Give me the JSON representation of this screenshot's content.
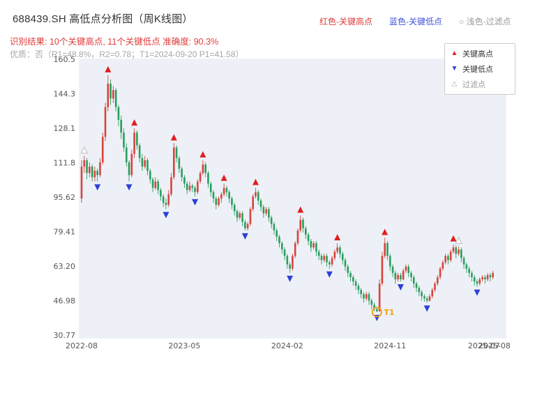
{
  "header": {
    "title": "688439.SH 高低点分析图（周K线图）",
    "top_legend": [
      {
        "label": "红色-关键高点",
        "color": "#e03c3c"
      },
      {
        "label": "蓝色-关键低点",
        "color": "#4055d8"
      },
      {
        "label": "○ 浅色-过滤点",
        "color": "#999999"
      }
    ],
    "result_line": "识别结果: 10个关键高点, 11个关键低点  准确度: 90.3%",
    "result_color": "#e03c3c",
    "quality_line": "优质：否（R1=48.8%，R2=0.78；T1=2024-09-20 P1=41.58）",
    "quality_color": "#a6a6a6"
  },
  "plot_legend": {
    "items": [
      {
        "symbol": "▲",
        "color": "#e01f1f",
        "label": "关键高点",
        "label_color": "#333333"
      },
      {
        "symbol": "▼",
        "color": "#2b3fd6",
        "label": "关键低点",
        "label_color": "#333333"
      },
      {
        "symbol": "△",
        "color": "#aaaaaa",
        "label": "过滤点",
        "label_color": "#999999"
      }
    ]
  },
  "chart_data": {
    "type": "candlestick",
    "title": "688439.SH 高低点分析图（周K线图）",
    "subtitle": "识别结果: 10个关键高点, 11个关键低点  准确度: 90.3%",
    "frequency": "weekly",
    "ylim": [
      30.77,
      160.5
    ],
    "y_tick_values": [
      160.5,
      144.3,
      128.1,
      111.8,
      95.62,
      79.41,
      63.2,
      46.98,
      30.77
    ],
    "y_tick_labels": [
      "160.5",
      "144.3",
      "128.1",
      "111.8",
      "95.62",
      "79.41",
      "63.20",
      "46.98",
      "30.77"
    ],
    "x_ticks": [
      {
        "label": "2022-08",
        "week": 0
      },
      {
        "label": "2023-05",
        "week": 39
      },
      {
        "label": "2024-02",
        "week": 78
      },
      {
        "label": "2024-11",
        "week": 117
      },
      {
        "label": "2025-07",
        "week": 152.6
      },
      {
        "label": "2025-08",
        "week": 156.6
      }
    ],
    "ohlc_format": "[open, high, low, close]",
    "candles": [
      [
        95,
        113,
        93,
        110
      ],
      [
        110,
        115,
        107,
        113
      ],
      [
        113,
        114,
        104,
        107
      ],
      [
        107,
        112,
        105,
        110
      ],
      [
        110,
        111,
        103,
        105
      ],
      [
        105,
        110,
        103,
        108
      ],
      [
        108,
        109,
        103,
        106
      ],
      [
        106,
        114,
        105,
        112
      ],
      [
        112,
        126,
        111,
        124
      ],
      [
        124,
        140,
        122,
        138
      ],
      [
        138,
        153,
        136,
        149
      ],
      [
        149,
        151,
        139,
        142
      ],
      [
        142,
        148,
        140,
        146
      ],
      [
        146,
        147,
        136,
        138
      ],
      [
        138,
        139,
        129,
        132
      ],
      [
        132,
        134,
        123,
        126
      ],
      [
        126,
        128,
        117,
        119
      ],
      [
        119,
        121,
        110,
        112
      ],
      [
        112,
        113,
        103,
        106
      ],
      [
        106,
        118,
        105,
        116
      ],
      [
        116,
        128,
        114,
        126
      ],
      [
        126,
        127,
        118,
        120
      ],
      [
        120,
        121,
        112,
        114
      ],
      [
        114,
        116,
        108,
        110
      ],
      [
        110,
        115,
        109,
        113
      ],
      [
        113,
        114,
        106,
        108
      ],
      [
        108,
        109,
        102,
        104
      ],
      [
        104,
        105,
        98,
        100
      ],
      [
        100,
        105,
        99,
        103
      ],
      [
        103,
        104,
        97,
        99
      ],
      [
        99,
        100,
        94,
        96
      ],
      [
        96,
        97,
        91,
        93
      ],
      [
        93,
        95,
        90,
        92
      ],
      [
        92,
        99,
        91,
        97
      ],
      [
        97,
        107,
        96,
        105
      ],
      [
        105,
        121,
        104,
        119
      ],
      [
        119,
        120,
        112,
        114
      ],
      [
        114,
        115,
        107,
        109
      ],
      [
        109,
        110,
        103,
        105
      ],
      [
        105,
        106,
        100,
        102
      ],
      [
        102,
        103,
        97,
        99
      ],
      [
        99,
        103,
        98,
        101
      ],
      [
        101,
        102,
        98,
        100
      ],
      [
        100,
        101,
        96,
        98
      ],
      [
        98,
        104,
        97,
        103
      ],
      [
        103,
        108,
        102,
        107
      ],
      [
        107,
        113,
        106,
        111
      ],
      [
        111,
        112,
        105,
        107
      ],
      [
        107,
        108,
        100,
        102
      ],
      [
        102,
        103,
        96,
        98
      ],
      [
        98,
        99,
        93,
        95
      ],
      [
        95,
        96,
        90,
        92
      ],
      [
        92,
        96,
        91,
        95
      ],
      [
        95,
        98,
        93,
        97
      ],
      [
        97,
        102,
        96,
        100
      ],
      [
        100,
        101,
        96,
        98
      ],
      [
        98,
        99,
        93,
        95
      ],
      [
        95,
        96,
        90,
        92
      ],
      [
        92,
        93,
        87,
        89
      ],
      [
        89,
        90,
        84,
        86
      ],
      [
        86,
        89,
        85,
        88
      ],
      [
        88,
        89,
        82,
        84
      ],
      [
        84,
        85,
        80,
        81
      ],
      [
        81,
        84,
        80,
        83
      ],
      [
        83,
        91,
        82,
        90
      ],
      [
        90,
        97,
        89,
        96
      ],
      [
        96,
        100,
        95,
        98
      ],
      [
        98,
        99,
        92,
        94
      ],
      [
        94,
        95,
        89,
        91
      ],
      [
        91,
        92,
        86,
        88
      ],
      [
        88,
        91,
        87,
        90
      ],
      [
        90,
        91,
        84,
        86
      ],
      [
        86,
        87,
        81,
        83
      ],
      [
        83,
        84,
        78,
        80
      ],
      [
        80,
        81,
        75,
        77
      ],
      [
        77,
        78,
        72,
        74
      ],
      [
        74,
        75,
        69,
        71
      ],
      [
        71,
        72,
        66,
        68
      ],
      [
        68,
        69,
        62,
        64
      ],
      [
        64,
        65,
        60,
        62
      ],
      [
        62,
        69,
        61,
        68
      ],
      [
        68,
        75,
        67,
        74
      ],
      [
        74,
        81,
        73,
        80
      ],
      [
        80,
        87,
        79,
        85
      ],
      [
        85,
        86,
        79,
        81
      ],
      [
        81,
        82,
        76,
        78
      ],
      [
        78,
        79,
        73,
        75
      ],
      [
        75,
        76,
        70,
        72
      ],
      [
        72,
        75,
        71,
        74
      ],
      [
        74,
        75,
        68,
        70
      ],
      [
        70,
        71,
        66,
        68
      ],
      [
        68,
        69,
        64,
        66
      ],
      [
        66,
        69,
        65,
        68
      ],
      [
        68,
        69,
        63,
        65
      ],
      [
        65,
        66,
        62,
        64
      ],
      [
        64,
        68,
        63,
        67
      ],
      [
        67,
        71,
        66,
        70
      ],
      [
        70,
        74,
        69,
        72
      ],
      [
        72,
        73,
        67,
        69
      ],
      [
        69,
        70,
        64,
        66
      ],
      [
        66,
        67,
        61,
        63
      ],
      [
        63,
        64,
        58,
        60
      ],
      [
        60,
        61,
        56,
        58
      ],
      [
        58,
        59,
        54,
        56
      ],
      [
        56,
        57,
        52,
        54
      ],
      [
        54,
        55,
        50,
        52
      ],
      [
        52,
        53,
        48,
        50
      ],
      [
        50,
        51,
        46,
        48
      ],
      [
        48,
        51,
        47,
        50
      ],
      [
        50,
        51,
        45,
        47
      ],
      [
        47,
        48,
        43,
        45
      ],
      [
        45,
        46,
        42,
        43
      ],
      [
        43,
        44,
        41.58,
        42
      ],
      [
        42,
        57,
        41.8,
        55
      ],
      [
        55,
        70,
        54,
        68
      ],
      [
        68,
        76.5,
        67,
        74
      ],
      [
        74,
        75,
        66,
        68
      ],
      [
        68,
        69,
        61,
        63
      ],
      [
        63,
        64,
        58,
        60
      ],
      [
        60,
        61,
        55,
        57
      ],
      [
        57,
        60,
        56,
        59
      ],
      [
        59,
        60,
        56,
        57
      ],
      [
        57,
        62,
        56.5,
        61
      ],
      [
        61,
        64,
        60,
        63
      ],
      [
        63,
        64,
        58,
        60
      ],
      [
        60,
        61,
        56,
        58
      ],
      [
        58,
        59,
        53,
        55
      ],
      [
        55,
        56,
        51,
        53
      ],
      [
        53,
        54,
        49,
        51
      ],
      [
        51,
        52,
        47,
        49
      ],
      [
        49,
        50,
        46.5,
        48
      ],
      [
        48,
        49,
        46,
        47
      ],
      [
        47,
        50,
        46.5,
        49
      ],
      [
        49,
        53,
        48,
        52
      ],
      [
        52,
        56,
        51,
        55
      ],
      [
        55,
        59,
        54,
        58
      ],
      [
        58,
        63,
        57,
        62
      ],
      [
        62,
        66,
        61,
        65
      ],
      [
        65,
        69,
        64,
        68
      ],
      [
        68,
        69,
        64,
        66
      ],
      [
        66,
        71,
        65,
        70
      ],
      [
        70,
        73.5,
        69,
        72
      ],
      [
        72,
        73,
        67,
        69
      ],
      [
        69,
        72.5,
        68,
        71
      ],
      [
        71,
        72,
        65,
        67
      ],
      [
        67,
        68,
        62,
        64
      ],
      [
        64,
        65,
        60,
        62
      ],
      [
        62,
        63,
        58,
        60
      ],
      [
        60,
        61,
        56,
        58
      ],
      [
        58,
        59,
        54,
        56
      ],
      [
        56,
        57,
        53.5,
        55
      ],
      [
        55,
        58,
        54,
        57
      ],
      [
        57,
        59,
        56,
        58
      ],
      [
        58,
        59,
        55,
        57
      ],
      [
        57,
        60,
        56,
        59
      ],
      [
        59,
        60,
        56,
        58
      ],
      [
        58,
        61,
        57,
        60
      ]
    ],
    "markers": {
      "key_high_weeks": [
        10,
        20,
        35,
        46,
        54,
        66,
        83,
        97,
        115,
        141
      ],
      "key_low_weeks": [
        6,
        18,
        32,
        43,
        62,
        79,
        94,
        112,
        121,
        131,
        150
      ],
      "filtered_high_weeks": [
        1,
        143
      ]
    },
    "annotation_t1": {
      "week": 112,
      "price": 41.58,
      "label": "T1",
      "date": "2024-09-20"
    },
    "colors": {
      "up": "#d7433c",
      "down": "#2a9d5c",
      "high_marker": "#e01f1f",
      "low_marker": "#2b3fd6",
      "filtered_marker": "#bbbbbb",
      "t1": "#f0a020",
      "panel_bg": "#edf1f7",
      "tick_text": "#555555"
    }
  }
}
